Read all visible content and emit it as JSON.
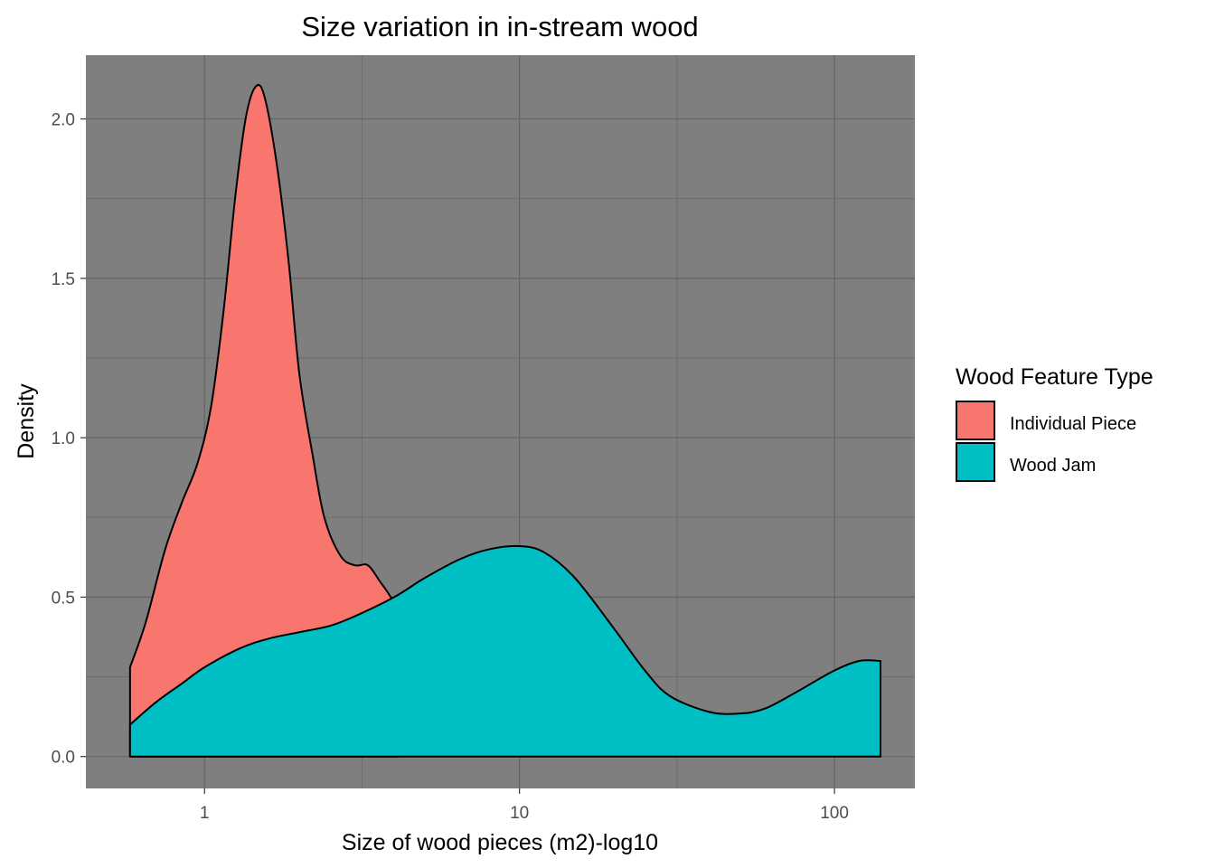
{
  "chart_data": {
    "type": "area",
    "title": "Size variation in in-stream wood",
    "xlabel": "Size of wood pieces (m2)-log10",
    "ylabel": "Density",
    "x_scale": "log10",
    "xlim": [
      0.42,
      180
    ],
    "ylim": [
      -0.1,
      2.2
    ],
    "x_ticks": [
      1,
      10,
      100
    ],
    "x_tick_labels": [
      "1",
      "10",
      "100"
    ],
    "y_ticks": [
      0,
      0.5,
      1,
      1.5,
      2
    ],
    "y_tick_labels": [
      "0.0",
      "0.5",
      "1.0",
      "1.5",
      "2.0"
    ],
    "grid": true,
    "panel_background": "#7F7F7F",
    "legend_position": "right",
    "legend_title": "Wood Feature Type",
    "series": [
      {
        "name": "Individual Piece",
        "color": "#F8766D",
        "x": [
          0.58,
          0.65,
          0.75,
          0.85,
          0.95,
          1.05,
          1.15,
          1.25,
          1.35,
          1.45,
          1.55,
          1.7,
          1.85,
          2.0,
          2.2,
          2.4,
          2.7,
          3.0,
          3.3,
          3.6,
          3.9,
          4.1
        ],
        "y": [
          0.28,
          0.42,
          0.65,
          0.8,
          0.92,
          1.1,
          1.4,
          1.75,
          2.0,
          2.1,
          2.07,
          1.85,
          1.55,
          1.2,
          0.95,
          0.75,
          0.63,
          0.6,
          0.6,
          0.55,
          0.5,
          0.45
        ]
      },
      {
        "name": "Wood Jam",
        "color": "#00BFC4",
        "x": [
          0.58,
          0.7,
          0.85,
          1.0,
          1.3,
          1.6,
          2.0,
          2.5,
          3.0,
          4.0,
          5.0,
          6.5,
          8.0,
          10.0,
          12.0,
          15.0,
          20.0,
          25.0,
          30.0,
          40.0,
          50.0,
          60.0,
          75.0,
          100.0,
          120.0,
          140.0
        ],
        "y": [
          0.1,
          0.17,
          0.23,
          0.28,
          0.34,
          0.37,
          0.39,
          0.41,
          0.44,
          0.5,
          0.56,
          0.62,
          0.65,
          0.66,
          0.64,
          0.56,
          0.4,
          0.27,
          0.19,
          0.14,
          0.135,
          0.15,
          0.2,
          0.27,
          0.3,
          0.3
        ]
      }
    ]
  }
}
